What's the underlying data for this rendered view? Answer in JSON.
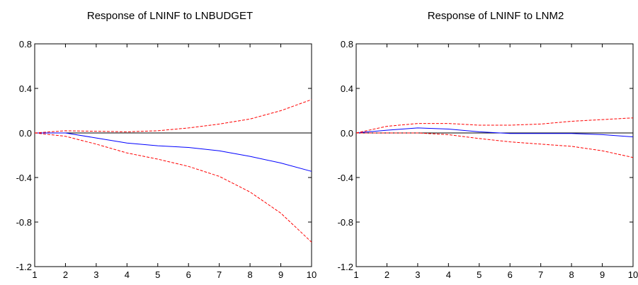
{
  "chart_data": [
    {
      "type": "line",
      "title": "Response of LNINF to LNBUDGET",
      "x": [
        1,
        2,
        3,
        4,
        5,
        6,
        7,
        8,
        9,
        10
      ],
      "x_ticks": [
        "1",
        "2",
        "3",
        "4",
        "5",
        "6",
        "7",
        "8",
        "9",
        "10"
      ],
      "ylim": [
        -1.2,
        0.8
      ],
      "y_ticks": [
        "0.8",
        "0.4",
        "0.0",
        "-0.4",
        "-0.8",
        "-1.2"
      ],
      "zero_line": true,
      "grid": false,
      "series": [
        {
          "role": "response",
          "color": "#0000ff",
          "dash": "solid",
          "values": [
            0.0,
            0.0,
            -0.045,
            -0.09,
            -0.115,
            -0.13,
            -0.16,
            -0.21,
            -0.27,
            -0.345
          ]
        },
        {
          "role": "upper",
          "color": "#ff0000",
          "dash": "dashed",
          "values": [
            0.0,
            0.02,
            0.015,
            0.01,
            0.02,
            0.045,
            0.08,
            0.125,
            0.2,
            0.3
          ]
        },
        {
          "role": "lower",
          "color": "#ff0000",
          "dash": "dashed",
          "values": [
            0.0,
            -0.03,
            -0.1,
            -0.18,
            -0.235,
            -0.3,
            -0.39,
            -0.53,
            -0.72,
            -0.98
          ]
        }
      ]
    },
    {
      "type": "line",
      "title": "Response of LNINF to LNM2",
      "x": [
        1,
        2,
        3,
        4,
        5,
        6,
        7,
        8,
        9,
        10
      ],
      "x_ticks": [
        "1",
        "2",
        "3",
        "4",
        "5",
        "6",
        "7",
        "8",
        "9",
        "10"
      ],
      "ylim": [
        -1.2,
        0.8
      ],
      "y_ticks": [
        "0.8",
        "0.4",
        "0.0",
        "-0.4",
        "-0.8",
        "-1.2"
      ],
      "zero_line": true,
      "grid": false,
      "series": [
        {
          "role": "response",
          "color": "#0000ff",
          "dash": "solid",
          "values": [
            0.0,
            0.025,
            0.045,
            0.035,
            0.01,
            -0.005,
            -0.005,
            -0.005,
            -0.015,
            -0.035
          ]
        },
        {
          "role": "upper",
          "color": "#ff0000",
          "dash": "dashed",
          "values": [
            0.0,
            0.06,
            0.085,
            0.085,
            0.07,
            0.07,
            0.08,
            0.105,
            0.12,
            0.135
          ]
        },
        {
          "role": "lower",
          "color": "#ff0000",
          "dash": "dashed",
          "values": [
            0.0,
            0.0,
            0.0,
            -0.015,
            -0.05,
            -0.08,
            -0.1,
            -0.12,
            -0.16,
            -0.22
          ]
        }
      ]
    }
  ]
}
